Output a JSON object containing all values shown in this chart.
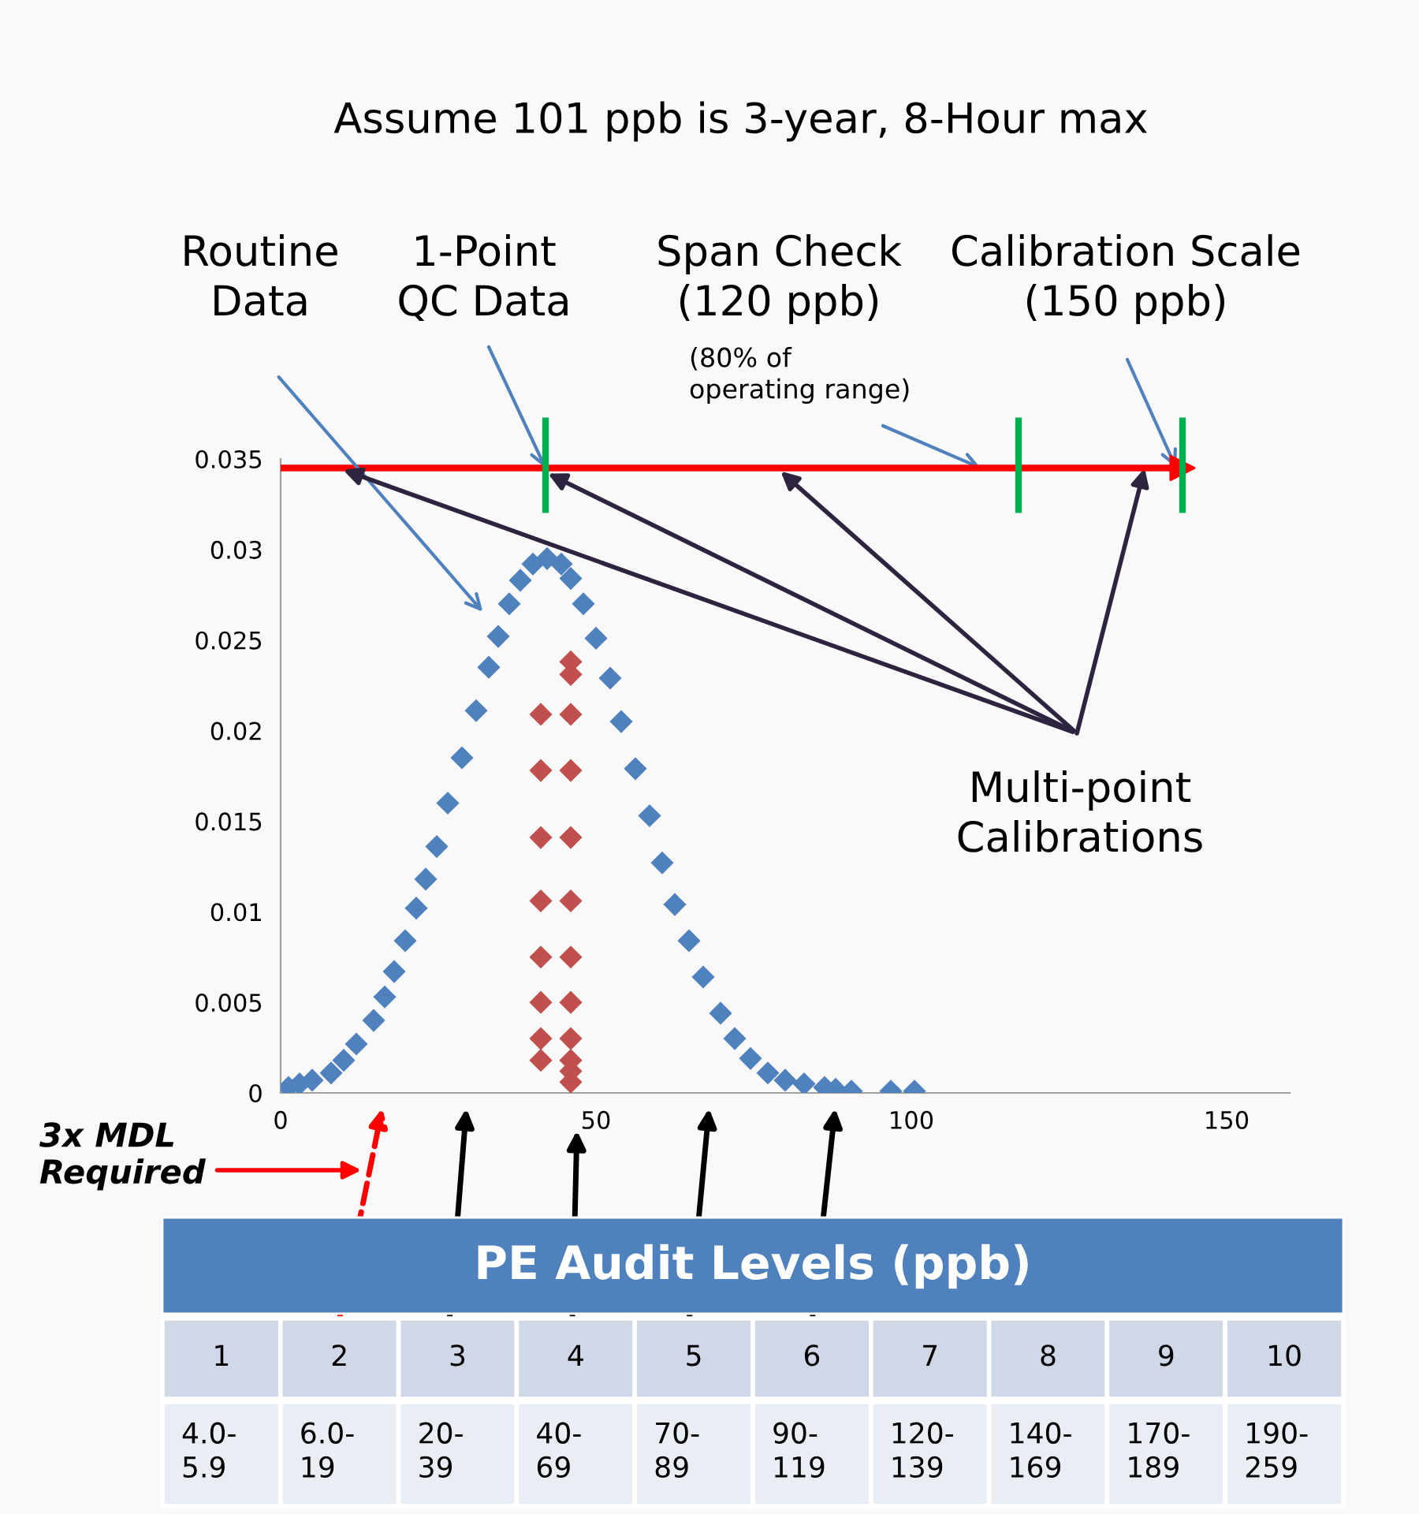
{
  "chart_data": {
    "type": "scatter",
    "title": "Assume 101 ppb is 3-year, 8-Hour max",
    "xlim": [
      0,
      160
    ],
    "xticks": [
      0,
      50,
      100,
      150
    ],
    "ylim": [
      0,
      0.035
    ],
    "yticks": [
      0,
      0.005,
      0.01,
      0.015,
      0.02,
      0.025,
      0.03,
      0.035
    ],
    "marker": "diamond",
    "grid": false,
    "legend": false,
    "series": [
      {
        "color": "#4f81bd",
        "x": [
          1.25,
          3,
          5,
          8,
          10,
          12,
          14.75,
          16.5,
          18,
          19.75,
          21.5,
          23,
          24.75,
          26.5,
          28.75,
          31,
          33,
          34.5,
          36.25,
          38,
          40,
          42.25,
          44.5,
          46,
          48,
          50,
          52.25,
          54,
          56.25,
          58.5,
          60.5,
          62.5,
          64.75,
          67,
          69.75,
          72,
          74.5,
          77.25,
          80,
          83,
          86.25,
          88,
          90.5,
          96.75,
          100.5
        ],
        "values": [
          0.0003,
          0.0005,
          0.0007,
          0.0011,
          0.0018,
          0.0027,
          0.004,
          0.0053,
          0.0067,
          0.0084,
          0.0102,
          0.0118,
          0.0136,
          0.016,
          0.0185,
          0.0211,
          0.0235,
          0.0252,
          0.027,
          0.0283,
          0.0292,
          0.0295,
          0.0292,
          0.0284,
          0.027,
          0.0251,
          0.0229,
          0.0205,
          0.0179,
          0.0153,
          0.0127,
          0.0104,
          0.0084,
          0.0064,
          0.0044,
          0.003,
          0.0019,
          0.0011,
          0.0007,
          0.0005,
          0.0003,
          0.0002,
          0.0001,
          0.0001,
          0.0001
        ]
      },
      {
        "color": "#c0504d",
        "x": [
          46,
          46,
          41.25,
          46,
          41.25,
          46,
          41.25,
          46,
          41.25,
          46,
          41.25,
          46,
          41.25,
          46,
          41.25,
          46,
          41.25,
          46,
          46,
          46
        ],
        "values": [
          0.0238,
          0.0231,
          0.0209,
          0.0209,
          0.0178,
          0.0178,
          0.0141,
          0.0141,
          0.0106,
          0.0106,
          0.0075,
          0.0075,
          0.005,
          0.005,
          0.003,
          0.003,
          0.0018,
          0.0018,
          0.0012,
          0.0006
        ]
      }
    ],
    "ref_lines": [
      {
        "axis": "y",
        "value": 0.0345,
        "color": "#ff0000"
      },
      {
        "axis": "x",
        "value": 42,
        "color": "#00b050"
      },
      {
        "axis": "x",
        "value": 117,
        "color": "#00b050"
      },
      {
        "axis": "x",
        "value": 143,
        "color": "#00b050"
      }
    ],
    "annotations": [
      "Routine\nData",
      {
        "text": "1-Point\nQC Data",
        "x": 42,
        "y": 0.0345
      },
      "Span Check\n(120 ppb)",
      {
        "text": "(80% of\noperating range)",
        "x": 111,
        "y": 0.0345
      },
      {
        "text": "Calibration Scale\n(150 ppb)",
        "x": 142,
        "y": 0.0345
      },
      {
        "text": "Multi-point\nCalibrations",
        "x": 137,
        "y": 0.0345
      },
      "3x MDL\nRequired",
      "PE Audit Levels (ppb)",
      "1",
      "2",
      "3",
      "4",
      "5",
      "6",
      "7",
      "8",
      "9",
      "10",
      "4.0-\n5.9",
      "6.0-\n19",
      "20-\n39",
      "40-\n69",
      "70-\n89",
      "90-\n119",
      "120-\n139",
      "140-\n169",
      "170-\n189",
      "190-\n259"
    ]
  }
}
